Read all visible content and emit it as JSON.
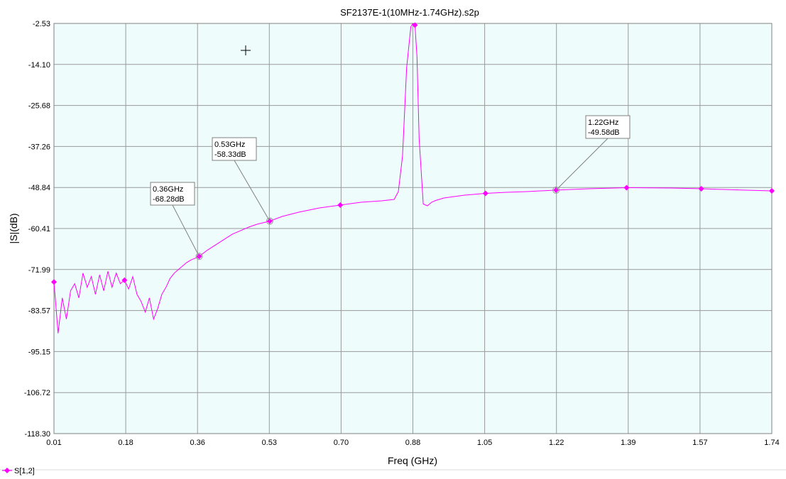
{
  "chart_data": {
    "type": "line",
    "title": "SF2137E-1(10MHz-1.74GHz).s2p",
    "xlabel": "Freq (GHz)",
    "ylabel": "|S|(dB)",
    "xlim": [
      0.01,
      1.74
    ],
    "ylim": [
      -118.3,
      -2.53
    ],
    "x_ticks": [
      "0.01",
      "0.18",
      "0.36",
      "0.53",
      "0.70",
      "0.88",
      "1.05",
      "1.22",
      "1.39",
      "1.57",
      "1.74"
    ],
    "y_ticks": [
      "-2.53",
      "-14.10",
      "-25.68",
      "-37.26",
      "-48.84",
      "-60.41",
      "-71.99",
      "-83.57",
      "-95.15",
      "-106.72",
      "-118.30"
    ],
    "grid": true,
    "plot_background": "#eefcfc",
    "series": [
      {
        "name": "S[1,2]",
        "color": "#ff00ff",
        "x": [
          0.01,
          0.02,
          0.03,
          0.04,
          0.05,
          0.06,
          0.07,
          0.08,
          0.09,
          0.1,
          0.11,
          0.12,
          0.13,
          0.14,
          0.15,
          0.16,
          0.17,
          0.18,
          0.19,
          0.2,
          0.21,
          0.22,
          0.23,
          0.24,
          0.25,
          0.26,
          0.27,
          0.28,
          0.29,
          0.3,
          0.31,
          0.32,
          0.33,
          0.34,
          0.35,
          0.36,
          0.38,
          0.4,
          0.42,
          0.44,
          0.46,
          0.48,
          0.5,
          0.53,
          0.56,
          0.6,
          0.65,
          0.7,
          0.75,
          0.8,
          0.83,
          0.84,
          0.85,
          0.86,
          0.87,
          0.875,
          0.88,
          0.885,
          0.89,
          0.9,
          0.91,
          0.92,
          0.93,
          0.95,
          1.0,
          1.05,
          1.1,
          1.15,
          1.2,
          1.22,
          1.3,
          1.39,
          1.5,
          1.57,
          1.65,
          1.74
        ],
        "values": [
          -75.5,
          -90.0,
          -80.0,
          -86.0,
          -78.0,
          -76.0,
          -80.0,
          -73.0,
          -77.0,
          -74.0,
          -79.0,
          -73.5,
          -78.0,
          -72.5,
          -77.0,
          -73.0,
          -76.0,
          -75.0,
          -77.5,
          -74.0,
          -79.0,
          -81.0,
          -84.0,
          -80.0,
          -86.0,
          -83.0,
          -79.0,
          -77.0,
          -74.5,
          -73.0,
          -72.0,
          -71.0,
          -70.0,
          -69.3,
          -68.8,
          -68.28,
          -66.5,
          -65.0,
          -63.5,
          -62.0,
          -61.0,
          -60.0,
          -59.2,
          -58.33,
          -57.0,
          -55.8,
          -54.6,
          -53.8,
          -53.0,
          -52.6,
          -52.2,
          -50.0,
          -40.0,
          -15.0,
          -3.5,
          -2.53,
          -3.0,
          -12.0,
          -35.0,
          -53.5,
          -54.0,
          -53.0,
          -52.5,
          -51.8,
          -51.0,
          -50.5,
          -50.2,
          -50.0,
          -49.7,
          -49.58,
          -49.2,
          -48.9,
          -49.0,
          -49.2,
          -49.5,
          -49.8
        ]
      }
    ],
    "markers_x": [
      0.01,
      0.18,
      0.36,
      0.53,
      0.7,
      0.88,
      1.05,
      1.22,
      1.39,
      1.57,
      1.74
    ],
    "annotations": [
      {
        "freq_text": "0.36GHz",
        "db_text": "-68.28dB",
        "x": 0.36,
        "y": -68.28
      },
      {
        "freq_text": "0.53GHz",
        "db_text": "-58.33dB",
        "x": 0.53,
        "y": -58.33
      },
      {
        "freq_text": "1.22GHz",
        "db_text": "-49.58dB",
        "x": 1.22,
        "y": -49.58
      }
    ],
    "legend": {
      "label": "S[1,2]",
      "placement": "bottom-left"
    }
  }
}
